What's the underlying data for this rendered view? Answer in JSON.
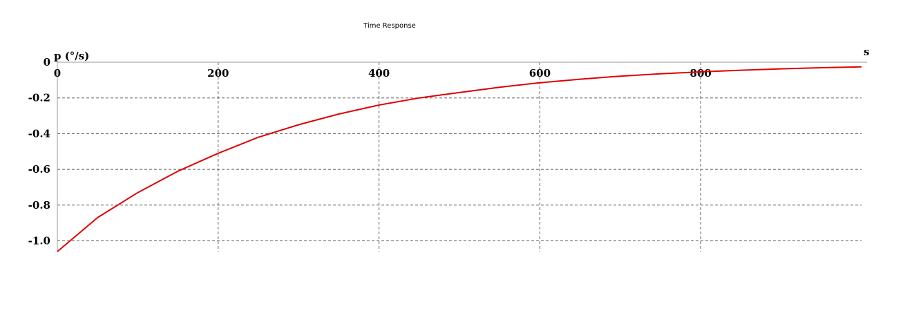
{
  "chart_data": {
    "type": "line",
    "title": "Time Response",
    "xlabel": "s",
    "ylabel": "p (°/s)",
    "xlim": [
      0,
      1000
    ],
    "ylim": [
      -1.06,
      0
    ],
    "x_ticks": [
      0,
      200,
      400,
      600,
      800
    ],
    "x_tick_labels": [
      "0",
      "200",
      "400",
      "600",
      "800"
    ],
    "y_ticks": [
      0,
      -0.2,
      -0.4,
      -0.6,
      -0.8,
      -1.0
    ],
    "y_tick_labels": [
      "0",
      "-0.2",
      "-0.4",
      "-0.6",
      "-0.8",
      "-1.0"
    ],
    "grid": true,
    "series": [
      {
        "color": "#e00000",
        "x": [
          0,
          50,
          100,
          150,
          200,
          250,
          300,
          350,
          400,
          450,
          500,
          550,
          600,
          650,
          700,
          750,
          800,
          850,
          900,
          950,
          1000
        ],
        "y": [
          -1.06,
          -0.87,
          -0.73,
          -0.61,
          -0.51,
          -0.42,
          -0.35,
          -0.29,
          -0.24,
          -0.2,
          -0.17,
          -0.14,
          -0.115,
          -0.095,
          -0.078,
          -0.065,
          -0.054,
          -0.045,
          -0.037,
          -0.031,
          -0.026
        ]
      }
    ]
  }
}
